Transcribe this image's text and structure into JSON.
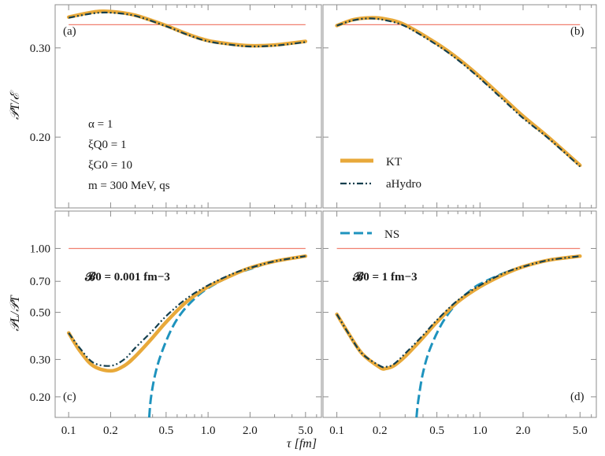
{
  "colors": {
    "kt": "#E8A93A",
    "ahydro": "#143F4E",
    "ns": "#1E93BE",
    "ref": "#F08070"
  },
  "axes": {
    "xlabel": "τ [fm]",
    "ylabel_top": "𝒫T/ℰ",
    "ylabel_bottom": "𝒫L/𝒫T"
  },
  "legend": {
    "kt": "KT",
    "ahydro": "aHydro",
    "ns": "NS"
  },
  "params": {
    "alpha": "α = 1",
    "xiq": "ξQ0 = 1",
    "xig": "ξG0 = 10",
    "mass": "m = 300 MeV, qs"
  },
  "chart_data": [
    {
      "panel": "(a)",
      "type": "line",
      "xscale": "log",
      "yscale": "log",
      "xlim": [
        0.08,
        6.5
      ],
      "ylim": [
        0.145,
        0.365
      ],
      "ylabel": "𝒫T/ℰ",
      "yticks": [
        "0.20",
        "0.30"
      ],
      "reference": 0.3333,
      "series": [
        {
          "name": "KT",
          "x": [
            0.1,
            0.15,
            0.2,
            0.3,
            0.5,
            0.7,
            1.0,
            1.5,
            2.0,
            3.0,
            5.0
          ],
          "y": [
            0.345,
            0.353,
            0.354,
            0.348,
            0.332,
            0.32,
            0.31,
            0.305,
            0.303,
            0.304,
            0.309
          ]
        },
        {
          "name": "aHydro",
          "x": [
            0.1,
            0.15,
            0.2,
            0.3,
            0.5,
            0.7,
            1.0,
            1.5,
            2.0,
            3.0,
            5.0
          ],
          "y": [
            0.344,
            0.351,
            0.352,
            0.347,
            0.331,
            0.319,
            0.309,
            0.304,
            0.302,
            0.303,
            0.308
          ]
        }
      ]
    },
    {
      "panel": "(b)",
      "type": "line",
      "xscale": "log",
      "yscale": "log",
      "xlim": [
        0.08,
        6.5
      ],
      "ylim": [
        0.145,
        0.365
      ],
      "reference": 0.3333,
      "series": [
        {
          "name": "KT",
          "x": [
            0.1,
            0.13,
            0.17,
            0.22,
            0.3,
            0.5,
            0.7,
            1.0,
            1.5,
            2.0,
            3.0,
            5.0
          ],
          "y": [
            0.332,
            0.341,
            0.344,
            0.342,
            0.333,
            0.306,
            0.286,
            0.263,
            0.237,
            0.22,
            0.2,
            0.176
          ]
        },
        {
          "name": "aHydro",
          "x": [
            0.1,
            0.13,
            0.17,
            0.22,
            0.3,
            0.5,
            0.7,
            1.0,
            1.5,
            2.0,
            3.0,
            5.0
          ],
          "y": [
            0.332,
            0.34,
            0.343,
            0.34,
            0.331,
            0.304,
            0.284,
            0.261,
            0.235,
            0.218,
            0.199,
            0.175
          ]
        }
      ]
    },
    {
      "panel": "(c)",
      "type": "line",
      "xscale": "log",
      "yscale": "log",
      "xlim": [
        0.08,
        6.5
      ],
      "ylim": [
        0.16,
        1.5
      ],
      "ylabel": "𝒫L/𝒫T",
      "yticks": [
        "0.20",
        "0.30",
        "0.50",
        "0.70",
        "1.00"
      ],
      "reference": 1.0,
      "annotation": "𝓑0 = 0.001 fm−3",
      "series": [
        {
          "name": "KT",
          "x": [
            0.1,
            0.12,
            0.15,
            0.2,
            0.25,
            0.3,
            0.4,
            0.5,
            0.7,
            1.0,
            1.5,
            2.0,
            3.0,
            5.0
          ],
          "y": [
            0.4,
            0.33,
            0.28,
            0.265,
            0.28,
            0.31,
            0.38,
            0.45,
            0.56,
            0.66,
            0.75,
            0.81,
            0.87,
            0.92
          ]
        },
        {
          "name": "aHydro",
          "x": [
            0.1,
            0.12,
            0.15,
            0.2,
            0.25,
            0.3,
            0.4,
            0.5,
            0.7,
            1.0,
            1.5,
            2.0,
            3.0,
            5.0
          ],
          "y": [
            0.4,
            0.34,
            0.29,
            0.28,
            0.3,
            0.34,
            0.41,
            0.48,
            0.58,
            0.67,
            0.76,
            0.81,
            0.87,
            0.92
          ]
        },
        {
          "name": "NS",
          "x": [
            0.378,
            0.39,
            0.42,
            0.47,
            0.55,
            0.65,
            0.8,
            1.0,
            1.5,
            2.0,
            3.0,
            5.0
          ],
          "y": [
            0.16,
            0.2,
            0.26,
            0.33,
            0.42,
            0.5,
            0.58,
            0.65,
            0.75,
            0.8,
            0.87,
            0.92
          ]
        }
      ]
    },
    {
      "panel": "(d)",
      "type": "line",
      "xscale": "log",
      "yscale": "log",
      "xlim": [
        0.08,
        6.5
      ],
      "ylim": [
        0.16,
        1.5
      ],
      "reference": 1.0,
      "annotation": "𝓑0 = 1 fm−3",
      "series": [
        {
          "name": "KT",
          "x": [
            0.1,
            0.12,
            0.15,
            0.2,
            0.22,
            0.25,
            0.3,
            0.4,
            0.5,
            0.7,
            1.0,
            1.5,
            2.0,
            3.0,
            5.0
          ],
          "y": [
            0.49,
            0.4,
            0.32,
            0.275,
            0.272,
            0.28,
            0.31,
            0.38,
            0.45,
            0.56,
            0.66,
            0.76,
            0.82,
            0.88,
            0.92
          ]
        },
        {
          "name": "aHydro",
          "x": [
            0.1,
            0.12,
            0.15,
            0.2,
            0.22,
            0.25,
            0.3,
            0.4,
            0.5,
            0.7,
            1.0,
            1.5,
            2.0,
            3.0,
            5.0
          ],
          "y": [
            0.49,
            0.4,
            0.32,
            0.28,
            0.277,
            0.285,
            0.32,
            0.39,
            0.46,
            0.57,
            0.67,
            0.77,
            0.82,
            0.88,
            0.92
          ]
        },
        {
          "name": "NS",
          "x": [
            0.36,
            0.37,
            0.4,
            0.45,
            0.55,
            0.7,
            0.85,
            1.0,
            1.5,
            2.0,
            3.0,
            5.0
          ],
          "y": [
            0.16,
            0.19,
            0.26,
            0.34,
            0.45,
            0.56,
            0.63,
            0.68,
            0.77,
            0.82,
            0.88,
            0.92
          ]
        }
      ]
    }
  ],
  "xticks": [
    "0.1",
    "0.2",
    "0.5",
    "1.0",
    "2.0",
    "5.0"
  ]
}
